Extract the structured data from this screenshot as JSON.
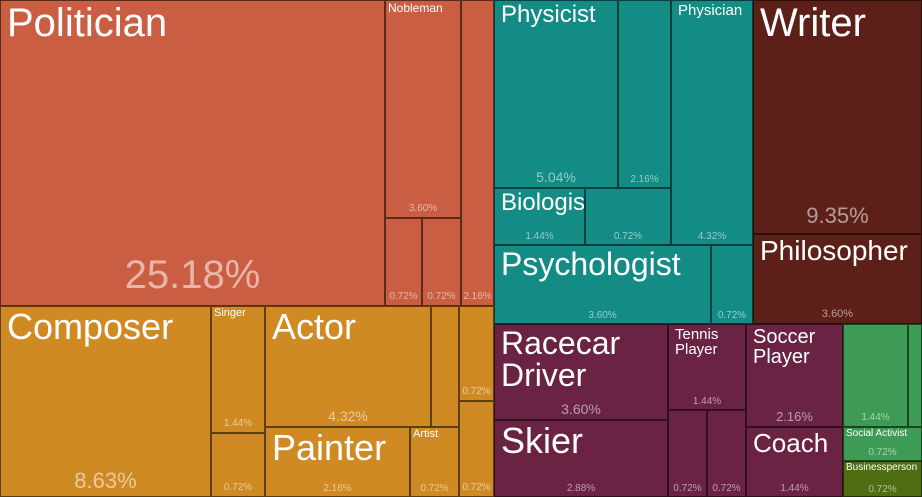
{
  "chart_data": {
    "type": "treemap",
    "title": "",
    "colors": {
      "politics": "#c95e42",
      "arts": "#cf8a24",
      "science": "#138c85",
      "humanities": "#5d2019",
      "sports": "#6a2343",
      "business": "#3d9b55",
      "business_dark": "#4f6e12"
    },
    "nodes": [
      {
        "id": "politician",
        "label": "Politician",
        "value": 25.18,
        "pct": "25.18%",
        "group": "politics"
      },
      {
        "id": "nobleman",
        "label": "Nobleman",
        "value": 3.6,
        "pct": "3.60%",
        "group": "politics"
      },
      {
        "id": "politics-a",
        "label": "",
        "value": 0.72,
        "pct": "0.72%",
        "group": "politics"
      },
      {
        "id": "politics-b",
        "label": "",
        "value": 0.72,
        "pct": "0.72%",
        "group": "politics"
      },
      {
        "id": "politics-c",
        "label": "",
        "value": 2.16,
        "pct": "2.16%",
        "group": "politics"
      },
      {
        "id": "composer",
        "label": "Composer",
        "value": 8.63,
        "pct": "8.63%",
        "group": "arts"
      },
      {
        "id": "singer",
        "label": "Singer",
        "value": 1.44,
        "pct": "1.44%",
        "group": "arts"
      },
      {
        "id": "arts-a",
        "label": "",
        "value": 0.72,
        "pct": "0.72%",
        "group": "arts"
      },
      {
        "id": "actor",
        "label": "Actor",
        "value": 4.32,
        "pct": "4.32%",
        "group": "arts"
      },
      {
        "id": "arts-b",
        "label": "",
        "value": 0,
        "pct": "",
        "group": "arts"
      },
      {
        "id": "arts-c",
        "label": "",
        "value": 0.72,
        "pct": "0.72%",
        "group": "arts"
      },
      {
        "id": "arts-d",
        "label": "",
        "value": 0.72,
        "pct": "0.72%",
        "group": "arts"
      },
      {
        "id": "painter",
        "label": "Painter",
        "value": 2.16,
        "pct": "2.16%",
        "group": "arts"
      },
      {
        "id": "artist",
        "label": "Artist",
        "value": 0.72,
        "pct": "0.72%",
        "group": "arts"
      },
      {
        "id": "physicist",
        "label": "Physicist",
        "value": 5.04,
        "pct": "5.04%",
        "group": "science"
      },
      {
        "id": "science-a",
        "label": "",
        "value": 2.16,
        "pct": "2.16%",
        "group": "science"
      },
      {
        "id": "physician",
        "label": "Physician",
        "value": 4.32,
        "pct": "4.32%",
        "group": "science"
      },
      {
        "id": "biologist",
        "label": "Biologist",
        "value": 1.44,
        "pct": "1.44%",
        "group": "science"
      },
      {
        "id": "science-b",
        "label": "",
        "value": 0.72,
        "pct": "0.72%",
        "group": "science"
      },
      {
        "id": "psychologist",
        "label": "Psychologist",
        "value": 3.6,
        "pct": "3.60%",
        "group": "science"
      },
      {
        "id": "science-c",
        "label": "",
        "value": 0.72,
        "pct": "0.72%",
        "group": "science"
      },
      {
        "id": "writer",
        "label": "Writer",
        "value": 9.35,
        "pct": "9.35%",
        "group": "humanities"
      },
      {
        "id": "philosopher",
        "label": "Philosopher",
        "value": 3.6,
        "pct": "3.60%",
        "group": "humanities"
      },
      {
        "id": "racecar-driver",
        "label": "Racecar\nDriver",
        "value": 3.6,
        "pct": "3.60%",
        "group": "sports"
      },
      {
        "id": "tennis-player",
        "label": "Tennis\nPlayer",
        "value": 1.44,
        "pct": "1.44%",
        "group": "sports"
      },
      {
        "id": "soccer-player",
        "label": "Soccer\nPlayer",
        "value": 2.16,
        "pct": "2.16%",
        "group": "sports"
      },
      {
        "id": "skier",
        "label": "Skier",
        "value": 2.88,
        "pct": "2.88%",
        "group": "sports"
      },
      {
        "id": "sports-a",
        "label": "",
        "value": 0.72,
        "pct": "0.72%",
        "group": "sports"
      },
      {
        "id": "sports-b",
        "label": "",
        "value": 0.72,
        "pct": "0.72%",
        "group": "sports"
      },
      {
        "id": "coach",
        "label": "Coach",
        "value": 1.44,
        "pct": "1.44%",
        "group": "sports"
      },
      {
        "id": "business-a",
        "label": "",
        "value": 1.44,
        "pct": "1.44%",
        "group": "business"
      },
      {
        "id": "business-b",
        "label": "",
        "value": 0,
        "pct": "",
        "group": "business"
      },
      {
        "id": "social-activist",
        "label": "Social Activist",
        "value": 0.72,
        "pct": "0.72%",
        "group": "business"
      },
      {
        "id": "businessperson",
        "label": "Businessperson",
        "value": 0.72,
        "pct": "0.72%",
        "group": "business_dark"
      }
    ]
  }
}
